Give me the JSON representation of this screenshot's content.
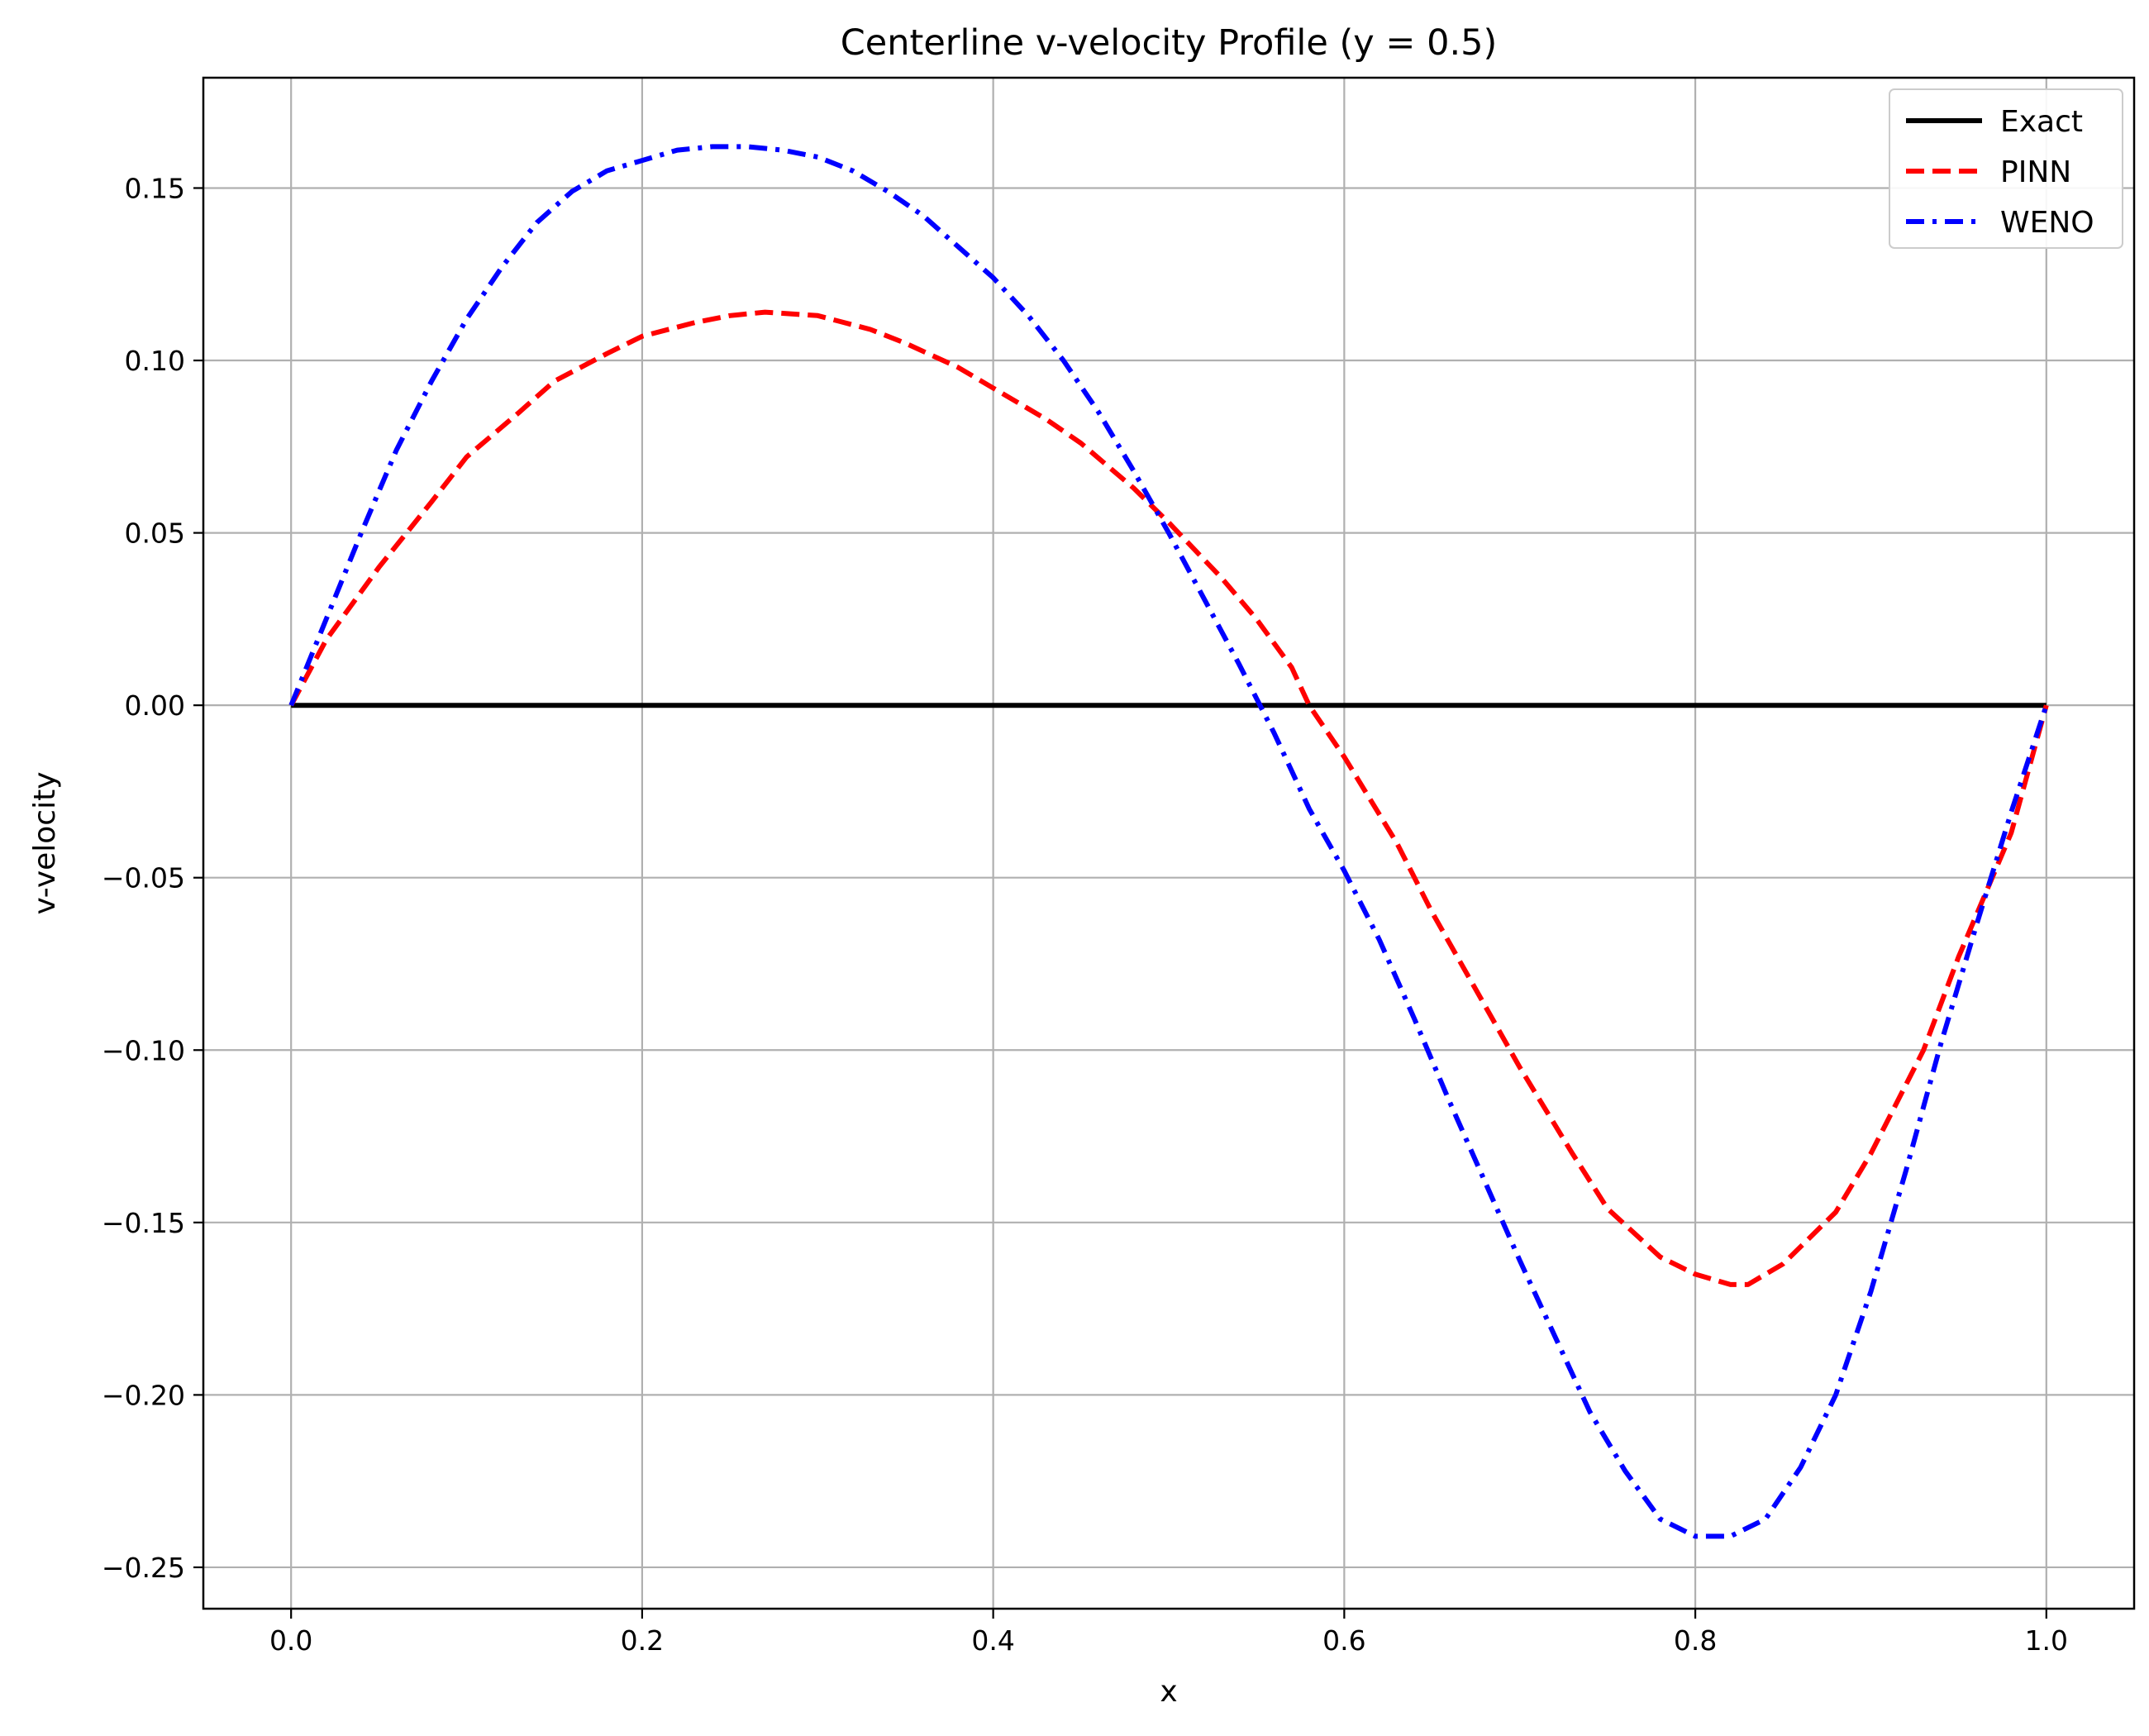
{
  "chart_data": {
    "type": "line",
    "title": "Centerline v-velocity Profile (y = 0.5)",
    "xlabel": "x",
    "ylabel": "v-velocity",
    "xlim": [
      -0.05,
      1.05
    ],
    "ylim": [
      -0.262,
      0.182
    ],
    "xticks": [
      0.0,
      0.2,
      0.4,
      0.6,
      0.8,
      1.0
    ],
    "xtick_labels": [
      "0.0",
      "0.2",
      "0.4",
      "0.6",
      "0.8",
      "1.0"
    ],
    "yticks": [
      -0.25,
      -0.2,
      -0.15,
      -0.1,
      -0.05,
      0.0,
      0.05,
      0.1,
      0.15
    ],
    "ytick_labels": [
      "−0.25",
      "−0.20",
      "−0.15",
      "−0.10",
      "−0.05",
      "0.00",
      "0.05",
      "0.10",
      "0.15"
    ],
    "grid": true,
    "legend_position": "top-right",
    "series": [
      {
        "name": "Exact",
        "color": "#000000",
        "style": "solid",
        "x": [
          0.0,
          1.0
        ],
        "y": [
          0.0,
          0.0
        ]
      },
      {
        "name": "PINN",
        "color": "#ff0000",
        "style": "dashed",
        "x": [
          0.0,
          0.02,
          0.05,
          0.08,
          0.1,
          0.13,
          0.15,
          0.18,
          0.2,
          0.23,
          0.25,
          0.27,
          0.3,
          0.33,
          0.35,
          0.38,
          0.4,
          0.43,
          0.45,
          0.48,
          0.5,
          0.53,
          0.55,
          0.57,
          0.58,
          0.6,
          0.63,
          0.65,
          0.68,
          0.7,
          0.73,
          0.75,
          0.78,
          0.8,
          0.82,
          0.83,
          0.85,
          0.88,
          0.9,
          0.93,
          0.95,
          0.98,
          1.0
        ],
        "y": [
          0.0,
          0.019,
          0.04,
          0.059,
          0.072,
          0.085,
          0.094,
          0.102,
          0.107,
          0.111,
          0.113,
          0.114,
          0.113,
          0.109,
          0.105,
          0.098,
          0.092,
          0.083,
          0.076,
          0.063,
          0.053,
          0.037,
          0.025,
          0.011,
          0.0,
          -0.015,
          -0.04,
          -0.06,
          -0.087,
          -0.105,
          -0.13,
          -0.146,
          -0.16,
          -0.165,
          -0.168,
          -0.168,
          -0.162,
          -0.147,
          -0.13,
          -0.1,
          -0.073,
          -0.037,
          0.0
        ]
      },
      {
        "name": "WENO",
        "color": "#0000ff",
        "style": "dashdot",
        "x": [
          0.0,
          0.02,
          0.04,
          0.06,
          0.08,
          0.1,
          0.12,
          0.14,
          0.16,
          0.18,
          0.2,
          0.22,
          0.24,
          0.26,
          0.28,
          0.3,
          0.32,
          0.34,
          0.36,
          0.38,
          0.4,
          0.42,
          0.44,
          0.46,
          0.48,
          0.5,
          0.52,
          0.54,
          0.56,
          0.57,
          0.58,
          0.6,
          0.62,
          0.64,
          0.66,
          0.68,
          0.7,
          0.72,
          0.74,
          0.76,
          0.78,
          0.8,
          0.82,
          0.84,
          0.86,
          0.88,
          0.9,
          0.92,
          0.94,
          0.96,
          0.98,
          1.0
        ],
        "y": [
          0.0,
          0.025,
          0.05,
          0.074,
          0.094,
          0.112,
          0.127,
          0.14,
          0.149,
          0.155,
          0.158,
          0.161,
          0.162,
          0.162,
          0.161,
          0.159,
          0.155,
          0.149,
          0.142,
          0.133,
          0.124,
          0.113,
          0.1,
          0.085,
          0.068,
          0.05,
          0.031,
          0.012,
          -0.008,
          -0.019,
          -0.03,
          -0.048,
          -0.068,
          -0.091,
          -0.115,
          -0.138,
          -0.161,
          -0.183,
          -0.205,
          -0.222,
          -0.236,
          -0.241,
          -0.241,
          -0.236,
          -0.221,
          -0.2,
          -0.17,
          -0.135,
          -0.098,
          -0.064,
          -0.031,
          0.0
        ]
      }
    ]
  }
}
